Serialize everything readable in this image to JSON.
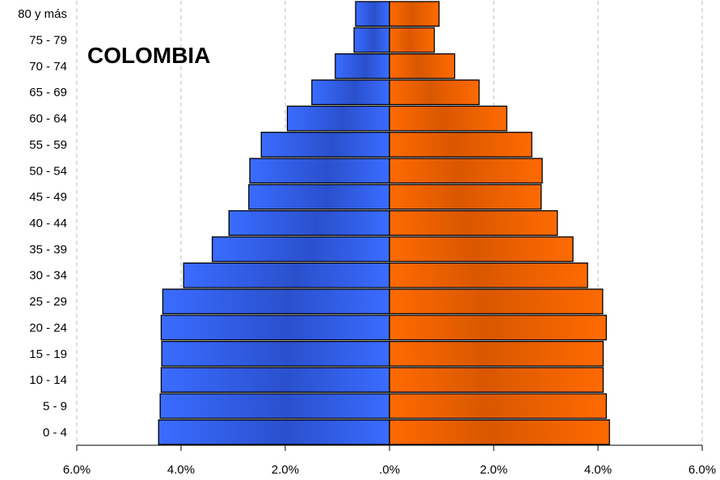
{
  "chart_data": {
    "type": "bar",
    "orientation": "horizontal-pyramid",
    "title": "COLOMBIA",
    "categories": [
      "0 - 4",
      "5 - 9",
      "10 - 14",
      "15 - 19",
      "20 - 24",
      "25 - 29",
      "30 - 34",
      "35 - 39",
      "40 - 44",
      "45 - 49",
      "50 - 54",
      "55 - 59",
      "60 - 64",
      "65 - 69",
      "70 - 74",
      "75 - 79",
      "80  y más"
    ],
    "series": [
      {
        "side": "left",
        "color": "#3366ff",
        "values": [
          4.43,
          4.4,
          4.38,
          4.37,
          4.38,
          4.35,
          3.95,
          3.4,
          3.08,
          2.7,
          2.68,
          2.46,
          1.96,
          1.49,
          1.04,
          0.68,
          0.65
        ]
      },
      {
        "side": "right",
        "color": "#ff6600",
        "values": [
          4.22,
          4.16,
          4.1,
          4.1,
          4.16,
          4.09,
          3.8,
          3.52,
          3.22,
          2.91,
          2.93,
          2.73,
          2.25,
          1.72,
          1.25,
          0.86,
          0.95
        ]
      }
    ],
    "xlim": [
      -6,
      6
    ],
    "xticks": [
      -6,
      -4,
      -2,
      0,
      2,
      4,
      6
    ],
    "xtick_labels": [
      "6.0%",
      "4.0%",
      "2.0%",
      ".0%",
      "2.0%",
      "4.0%",
      "6.0%"
    ],
    "grid": "vertical-dashed",
    "legend": "none"
  }
}
